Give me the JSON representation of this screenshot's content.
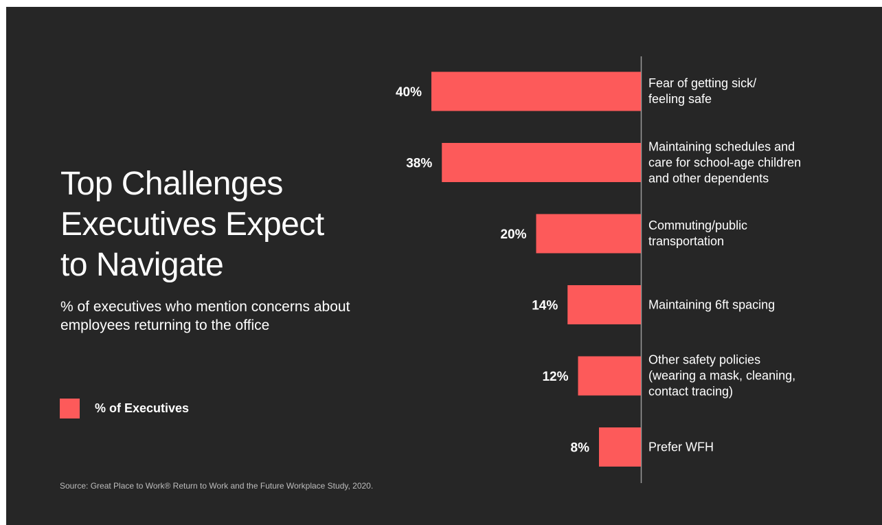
{
  "colors": {
    "background": "#262626",
    "bar": "#fd5a5a",
    "text": "#ffffff",
    "axis": "#9a9a9a"
  },
  "title_lines": [
    "Top Challenges",
    "Executives Expect",
    "to Navigate"
  ],
  "subtitle": "% of executives who mention concerns about employees returning to the office",
  "source": "Source: Great Place to Work® Return to Work and the Future Workplace Study, 2020.",
  "chart_data": {
    "type": "bar",
    "orientation": "horizontal",
    "title": "Top Challenges Executives Expect to Navigate",
    "subtitle": "% of executives who mention concerns about employees returning to the office",
    "legend": {
      "entries": [
        "% of Executives"
      ],
      "placement": "left"
    },
    "grid": false,
    "categories": [
      [
        "Fear of getting sick/",
        "feeling safe"
      ],
      [
        "Maintaining schedules and",
        "care for school-age children",
        "and other dependents"
      ],
      [
        "Commuting/public",
        "transportation"
      ],
      [
        "Maintaining 6ft spacing"
      ],
      [
        "Other safety policies",
        "(wearing a mask, cleaning,",
        "contact tracing)"
      ],
      [
        "Prefer WFH"
      ]
    ],
    "series": [
      {
        "name": "% of Executives",
        "values": [
          40,
          38,
          20,
          14,
          12,
          8
        ],
        "labels": [
          "40%",
          "38%",
          "20%",
          "14%",
          "12%",
          "8%"
        ]
      }
    ],
    "xlim": [
      0,
      40
    ]
  }
}
